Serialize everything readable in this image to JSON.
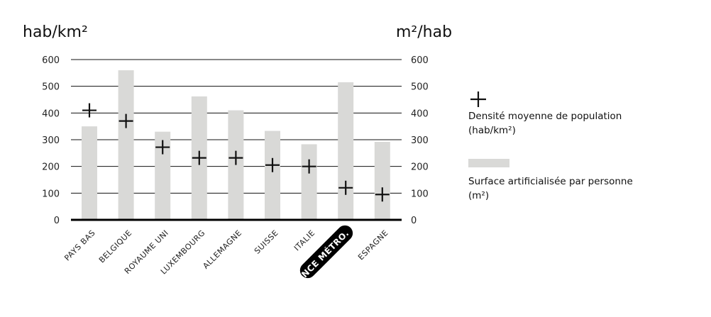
{
  "chart_data": {
    "type": "bar",
    "left_axis_label": "hab/km²",
    "right_axis_label": "m²/hab",
    "ylim": [
      0,
      600
    ],
    "yticks": [
      0,
      100,
      200,
      300,
      400,
      500,
      600
    ],
    "grid": true,
    "categories": [
      "PAYS BAS",
      "BELGIQUE",
      "ROYAUME UNI",
      "LUXEMBOURG",
      "ALLEMAGNE",
      "SUISSE",
      "ITALIE",
      "FRANCE MÉTRO.",
      "ESPAGNE"
    ],
    "highlighted_category": "FRANCE MÉTRO.",
    "series": [
      {
        "name": "Surface artificialisée par personne (m²)",
        "mark": "bar",
        "color": "#d9d9d7",
        "values": [
          350,
          560,
          330,
          462,
          410,
          333,
          283,
          515,
          292
        ]
      },
      {
        "name": "Densité moyenne de population (hab/km²)",
        "mark": "cross",
        "color": "#111111",
        "values": [
          410,
          370,
          272,
          232,
          232,
          205,
          200,
          120,
          95
        ]
      }
    ],
    "legend": {
      "position": "right",
      "items": [
        {
          "label_line1": "Densité moyenne de population",
          "label_line2": "(hab/km²)"
        },
        {
          "label_line1": "Surface artificialisée par personne",
          "label_line2": "(m²)"
        }
      ]
    }
  }
}
